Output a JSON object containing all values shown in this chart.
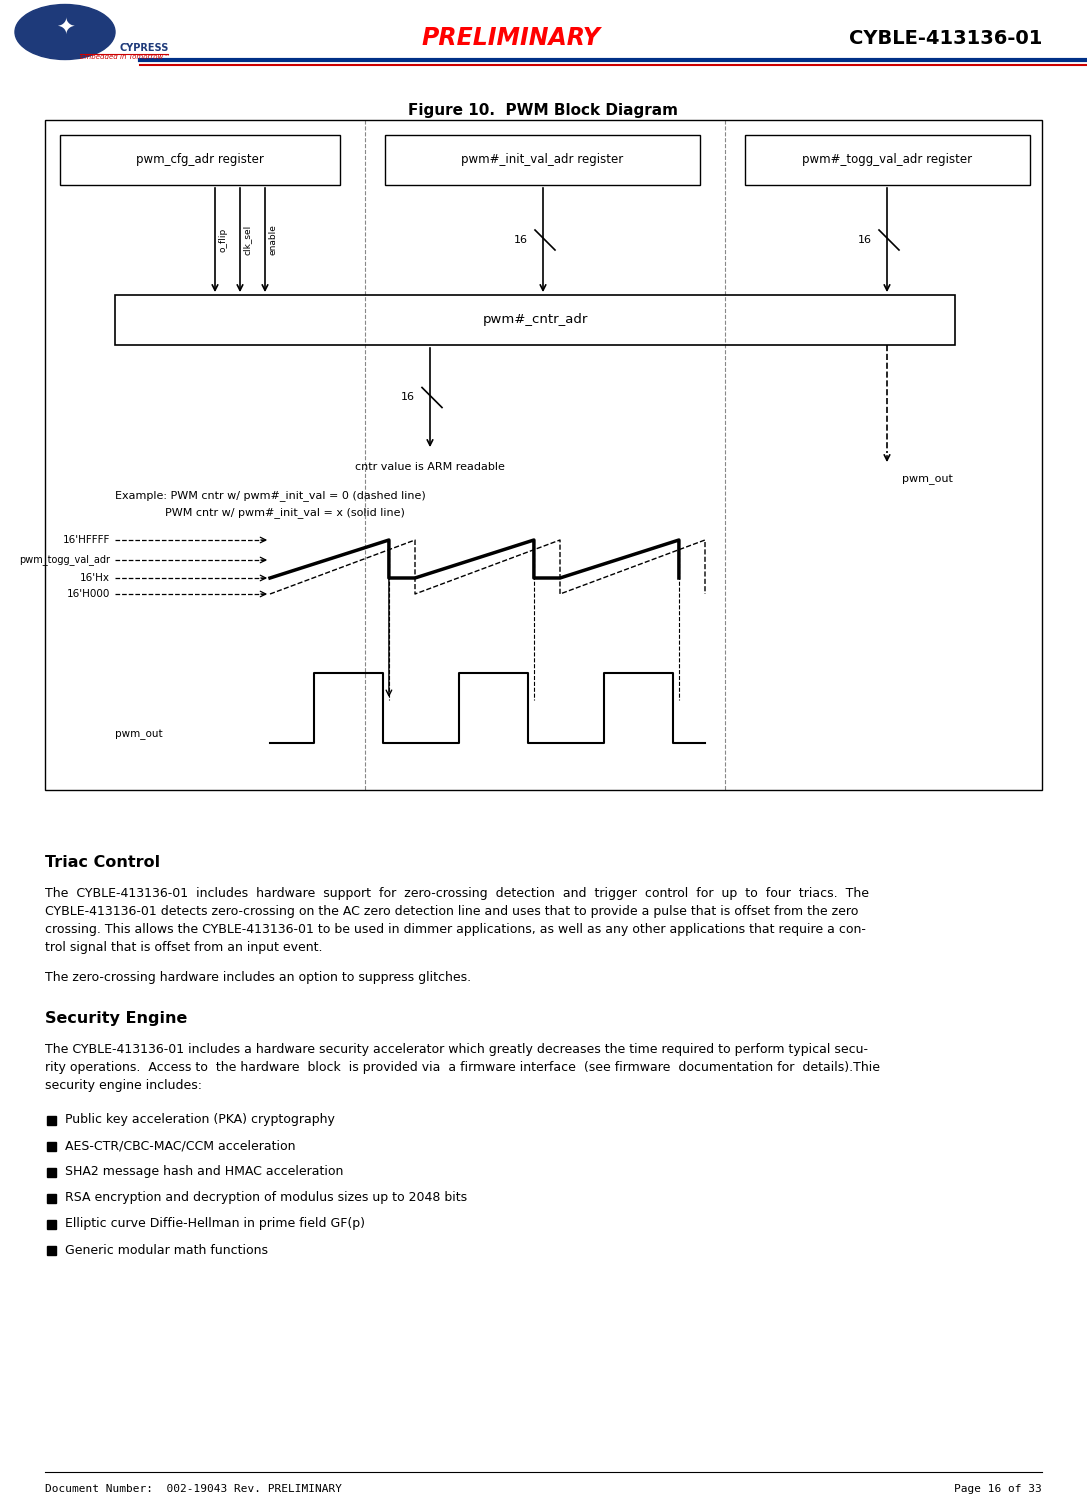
{
  "page_width": 10.87,
  "page_height": 15.07,
  "background_color": "#ffffff",
  "footer_left": "Document Number:  002-19043 Rev. PRELIMINARY",
  "footer_right": "Page 16 of 33",
  "figure_title": "Figure 10.  PWM Block Diagram",
  "section1_title": "Triac Control",
  "section1_body_line1": "The  CYBLE-413136-01  includes  hardware  support  for  zero-crossing  detection  and  trigger  control  for  up  to  four  triacs.  The",
  "section1_body_line2": "CYBLE-413136-01 detects zero-crossing on the AC zero detection line and uses that to provide a pulse that is offset from the zero",
  "section1_body_line3": "crossing. This allows the CYBLE-413136-01 to be used in dimmer applications, as well as any other applications that require a con-",
  "section1_body_line4": "trol signal that is offset from an input event.",
  "section1_extra": "The zero-crossing hardware includes an option to suppress glitches.",
  "section2_title": "Security Engine",
  "section2_body_line1": "The CYBLE-413136-01 includes a hardware security accelerator which greatly decreases the time required to perform typical secu-",
  "section2_body_line2": "rity operations.  Access to  the hardware  block  is provided via  a firmware interface  (see firmware  documentation for  details).Thie",
  "section2_body_line3": "security engine includes:",
  "bullets": [
    "Public key acceleration (PKA) cryptography",
    "AES-CTR/CBC-MAC/CCM acceleration",
    "SHA2 message hash and HMAC acceleration",
    "RSA encryption and decryption of modulus sizes up to 2048 bits",
    "Elliptic curve Diffie-Hellman in prime field GF(p)",
    "Generic modular math functions"
  ]
}
